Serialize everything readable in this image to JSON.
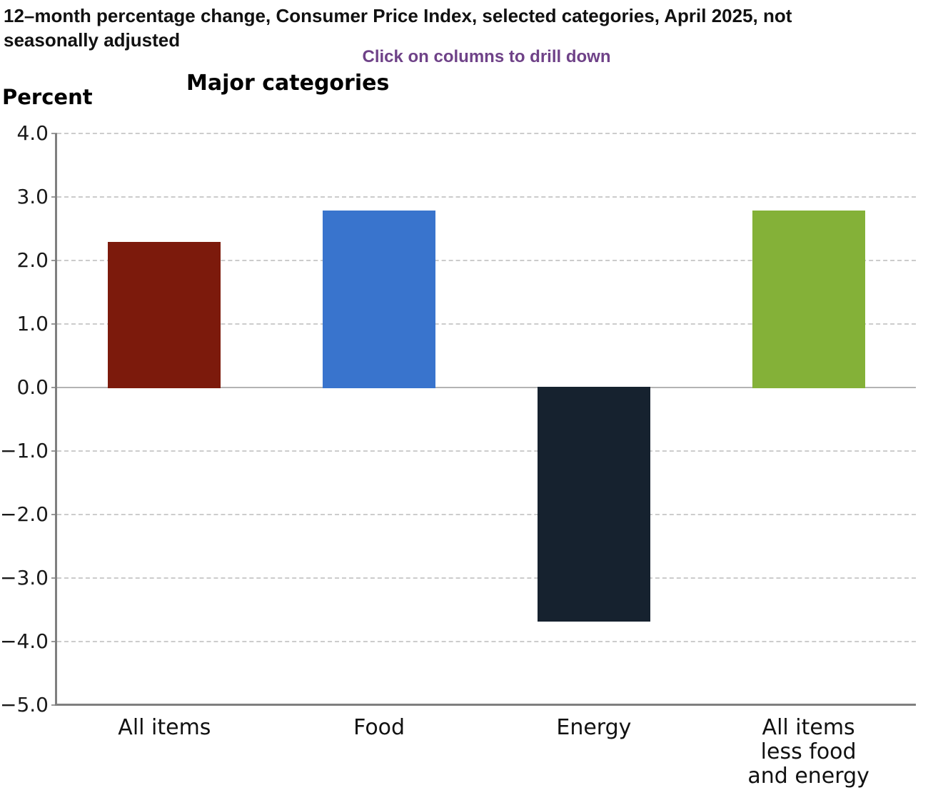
{
  "header": {
    "title": "12–month percentage change, Consumer Price Index, selected categories, April 2025, not seasonally adjusted",
    "drilldown_hint": "Click on columns to drill down",
    "drilldown_hint_color": "#6f4288"
  },
  "chart_data": {
    "type": "bar",
    "title": "Major categories",
    "ylabel": "Percent",
    "categories": [
      "All items",
      "Food",
      "Energy",
      "All items\nless food\nand energy"
    ],
    "values": [
      2.3,
      2.8,
      -3.7,
      2.8
    ],
    "bar_colors": [
      "#7c1a0c",
      "#3974cd",
      "#16222f",
      "#84b138"
    ],
    "ylim": [
      -5.0,
      4.0
    ],
    "yticks": [
      4.0,
      3.0,
      2.0,
      1.0,
      0.0,
      -1.0,
      -2.0,
      -3.0,
      -4.0,
      -5.0
    ],
    "ytick_labels": [
      "4.0",
      "3.0",
      "2.0",
      "1.0",
      "0.0",
      "−1.0",
      "−2.0",
      "−3.0",
      "−4.0",
      "−5.0"
    ],
    "grid": "horizontal dashed",
    "grid_color": "#cccccc",
    "zero_line_color": "#b3b3b3",
    "axis_color": "#7f7f7f",
    "legend": "none"
  }
}
